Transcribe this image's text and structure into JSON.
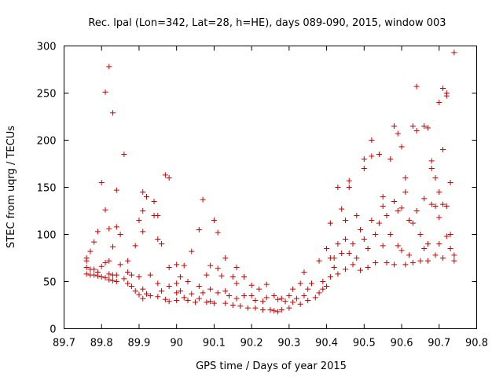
{
  "chart_data": {
    "type": "scatter",
    "title": "Rec. lpal (Lon=342, Lat=28, h=HE), days 089-090, 2015, window 003",
    "xlabel": "GPS time / Days of year 2015",
    "ylabel": "STEC from uqrg / TECUs",
    "xlim": [
      89.7,
      90.8
    ],
    "ylim": [
      0,
      300
    ],
    "xticks": [
      "89.7",
      "89.8",
      "89.9",
      "90",
      "90.1",
      "90.2",
      "90.3",
      "90.4",
      "90.5",
      "90.6",
      "90.7",
      "90.8"
    ],
    "yticks": [
      "0",
      "50",
      "100",
      "150",
      "200",
      "250",
      "300"
    ],
    "grid": false,
    "legend": "none",
    "marker": "plus",
    "color": "#cc0000",
    "series": [
      {
        "points": [
          [
            89.76,
            75
          ],
          [
            89.76,
            72
          ],
          [
            89.76,
            65
          ],
          [
            89.76,
            58
          ],
          [
            89.77,
            82
          ],
          [
            89.77,
            63
          ],
          [
            89.77,
            57
          ],
          [
            89.78,
            92
          ],
          [
            89.78,
            63
          ],
          [
            89.78,
            57
          ],
          [
            89.79,
            103
          ],
          [
            89.79,
            60
          ],
          [
            89.79,
            56
          ],
          [
            89.8,
            155
          ],
          [
            89.8,
            66
          ],
          [
            89.8,
            55
          ],
          [
            89.81,
            251
          ],
          [
            89.81,
            126
          ],
          [
            89.81,
            70
          ],
          [
            89.81,
            54
          ],
          [
            89.82,
            278
          ],
          [
            89.82,
            106
          ],
          [
            89.82,
            72
          ],
          [
            89.82,
            58
          ],
          [
            89.82,
            52
          ],
          [
            89.83,
            229
          ],
          [
            89.83,
            87
          ],
          [
            89.83,
            57
          ],
          [
            89.83,
            51
          ],
          [
            89.84,
            147
          ],
          [
            89.84,
            108
          ],
          [
            89.84,
            57
          ],
          [
            89.84,
            50
          ],
          [
            89.85,
            100
          ],
          [
            89.85,
            68
          ],
          [
            89.86,
            185
          ],
          [
            89.86,
            53
          ],
          [
            89.87,
            72
          ],
          [
            89.87,
            60
          ],
          [
            89.87,
            48
          ],
          [
            89.88,
            57
          ],
          [
            89.88,
            45
          ],
          [
            89.89,
            40
          ],
          [
            89.89,
            88
          ],
          [
            89.9,
            115
          ],
          [
            89.9,
            55
          ],
          [
            89.9,
            36
          ],
          [
            89.91,
            145
          ],
          [
            89.91,
            125
          ],
          [
            89.91,
            103
          ],
          [
            89.91,
            42
          ],
          [
            89.91,
            32
          ],
          [
            89.92,
            140
          ],
          [
            89.92,
            37
          ],
          [
            89.93,
            57
          ],
          [
            89.93,
            35
          ],
          [
            89.94,
            120
          ],
          [
            89.94,
            135
          ],
          [
            89.95,
            95
          ],
          [
            89.95,
            120
          ],
          [
            89.95,
            48
          ],
          [
            89.95,
            34
          ],
          [
            89.96,
            90
          ],
          [
            89.96,
            40
          ],
          [
            89.97,
            163
          ],
          [
            89.97,
            31
          ],
          [
            89.98,
            160
          ],
          [
            89.98,
            65
          ],
          [
            89.98,
            45
          ],
          [
            89.98,
            29
          ],
          [
            90.0,
            68
          ],
          [
            90.0,
            48
          ],
          [
            90.0,
            38
          ],
          [
            90.0,
            30
          ],
          [
            90.01,
            55
          ],
          [
            90.01,
            40
          ],
          [
            90.02,
            67
          ],
          [
            90.02,
            33
          ],
          [
            90.03,
            50
          ],
          [
            90.03,
            30
          ],
          [
            90.04,
            82
          ],
          [
            90.04,
            37
          ],
          [
            90.05,
            28
          ],
          [
            90.06,
            105
          ],
          [
            90.06,
            45
          ],
          [
            90.06,
            32
          ],
          [
            90.07,
            137
          ],
          [
            90.07,
            38
          ],
          [
            90.08,
            57
          ],
          [
            90.08,
            28
          ],
          [
            90.09,
            67
          ],
          [
            90.09,
            42
          ],
          [
            90.09,
            29
          ],
          [
            90.1,
            115
          ],
          [
            90.1,
            27
          ],
          [
            90.11,
            102
          ],
          [
            90.11,
            64
          ],
          [
            90.11,
            38
          ],
          [
            90.12,
            56
          ],
          [
            90.13,
            75
          ],
          [
            90.13,
            40
          ],
          [
            90.13,
            27
          ],
          [
            90.14,
            35
          ],
          [
            90.15,
            55
          ],
          [
            90.15,
            25
          ],
          [
            90.16,
            65
          ],
          [
            90.16,
            48
          ],
          [
            90.16,
            32
          ],
          [
            90.17,
            24
          ],
          [
            90.18,
            55
          ],
          [
            90.18,
            35
          ],
          [
            90.19,
            22
          ],
          [
            90.2,
            46
          ],
          [
            90.2,
            35
          ],
          [
            90.21,
            30
          ],
          [
            90.21,
            22
          ],
          [
            90.22,
            42
          ],
          [
            90.23,
            29
          ],
          [
            90.23,
            20
          ],
          [
            90.24,
            47
          ],
          [
            90.24,
            33
          ],
          [
            90.25,
            20
          ],
          [
            90.26,
            35
          ],
          [
            90.26,
            19
          ],
          [
            90.27,
            31
          ],
          [
            90.27,
            18
          ],
          [
            90.28,
            32
          ],
          [
            90.28,
            20
          ],
          [
            90.29,
            29
          ],
          [
            90.3,
            35
          ],
          [
            90.3,
            22
          ],
          [
            90.31,
            42
          ],
          [
            90.31,
            28
          ],
          [
            90.32,
            32
          ],
          [
            90.33,
            48
          ],
          [
            90.33,
            26
          ],
          [
            90.34,
            60
          ],
          [
            90.34,
            35
          ],
          [
            90.35,
            42
          ],
          [
            90.35,
            30
          ],
          [
            90.36,
            48
          ],
          [
            90.37,
            33
          ],
          [
            90.38,
            72
          ],
          [
            90.38,
            38
          ],
          [
            90.39,
            50
          ],
          [
            90.39,
            42
          ],
          [
            90.4,
            85
          ],
          [
            90.4,
            45
          ],
          [
            90.41,
            112
          ],
          [
            90.41,
            75
          ],
          [
            90.41,
            55
          ],
          [
            90.42,
            75
          ],
          [
            90.42,
            65
          ],
          [
            90.43,
            150
          ],
          [
            90.43,
            90
          ],
          [
            90.43,
            58
          ],
          [
            90.44,
            127
          ],
          [
            90.44,
            80
          ],
          [
            90.45,
            115
          ],
          [
            90.45,
            95
          ],
          [
            90.45,
            63
          ],
          [
            90.46,
            157
          ],
          [
            90.46,
            150
          ],
          [
            90.46,
            80
          ],
          [
            90.47,
            90
          ],
          [
            90.47,
            68
          ],
          [
            90.48,
            120
          ],
          [
            90.48,
            75
          ],
          [
            90.49,
            105
          ],
          [
            90.49,
            62
          ],
          [
            90.5,
            180
          ],
          [
            90.5,
            170
          ],
          [
            90.5,
            95
          ],
          [
            90.51,
            85
          ],
          [
            90.51,
            65
          ],
          [
            90.52,
            200
          ],
          [
            90.52,
            183
          ],
          [
            90.52,
            115
          ],
          [
            90.53,
            100
          ],
          [
            90.53,
            70
          ],
          [
            90.54,
            185
          ],
          [
            90.54,
            112
          ],
          [
            90.55,
            140
          ],
          [
            90.55,
            130
          ],
          [
            90.55,
            88
          ],
          [
            90.56,
            120
          ],
          [
            90.56,
            70
          ],
          [
            90.57,
            180
          ],
          [
            90.57,
            100
          ],
          [
            90.58,
            215
          ],
          [
            90.58,
            135
          ],
          [
            90.58,
            68
          ],
          [
            90.59,
            207
          ],
          [
            90.59,
            125
          ],
          [
            90.59,
            88
          ],
          [
            90.6,
            193
          ],
          [
            90.6,
            128
          ],
          [
            90.6,
            83
          ],
          [
            90.61,
            160
          ],
          [
            90.61,
            145
          ],
          [
            90.61,
            68
          ],
          [
            90.62,
            115
          ],
          [
            90.62,
            78
          ],
          [
            90.63,
            215
          ],
          [
            90.63,
            112
          ],
          [
            90.63,
            70
          ],
          [
            90.64,
            257
          ],
          [
            90.64,
            210
          ],
          [
            90.64,
            125
          ],
          [
            90.65,
            100
          ],
          [
            90.65,
            72
          ],
          [
            90.66,
            215
          ],
          [
            90.66,
            138
          ],
          [
            90.66,
            85
          ],
          [
            90.67,
            213
          ],
          [
            90.67,
            90
          ],
          [
            90.67,
            72
          ],
          [
            90.68,
            178
          ],
          [
            90.68,
            170
          ],
          [
            90.68,
            132
          ],
          [
            90.69,
            160
          ],
          [
            90.69,
            130
          ],
          [
            90.69,
            78
          ],
          [
            90.7,
            240
          ],
          [
            90.7,
            145
          ],
          [
            90.7,
            118
          ],
          [
            90.7,
            90
          ],
          [
            90.71,
            255
          ],
          [
            90.71,
            190
          ],
          [
            90.71,
            132
          ],
          [
            90.71,
            75
          ],
          [
            90.72,
            250
          ],
          [
            90.72,
            247
          ],
          [
            90.72,
            130
          ],
          [
            90.72,
            98
          ],
          [
            90.73,
            155
          ],
          [
            90.73,
            100
          ],
          [
            90.73,
            85
          ],
          [
            90.74,
            293
          ],
          [
            90.74,
            78
          ],
          [
            90.74,
            72
          ]
        ]
      }
    ]
  }
}
